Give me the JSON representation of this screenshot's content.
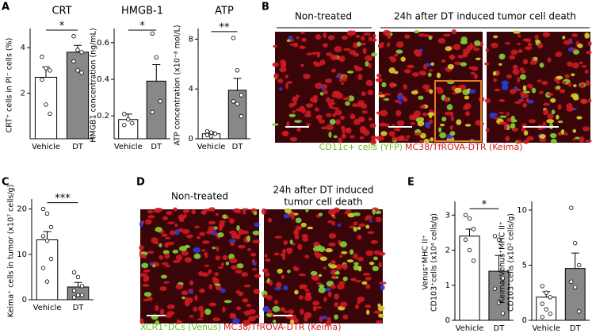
{
  "panels": {
    "A": {
      "letter": "A"
    },
    "B": {
      "letter": "B",
      "untreated_label": "Non-treated",
      "treated_label": "24h after DT induced tumor cell death",
      "caption_green": "CD11c+ cells (YFP)",
      "caption_red": "MC38/TfROVA-DTR (Keima)"
    },
    "C": {
      "letter": "C"
    },
    "D": {
      "letter": "D",
      "untreated_label": "Non-treated",
      "treated_label": [
        "24h after DT induced",
        "tumor cell death"
      ],
      "caption_green": "XCR1⁺DCs (Venus)",
      "caption_red": "MC38/TfROVA-DTR (Keima)"
    },
    "E": {
      "letter": "E"
    }
  },
  "chart_data": [
    {
      "type": "bar",
      "title": "CRT",
      "ylabel": [
        "CRT⁺ cells in PI⁻ cells (%)"
      ],
      "categories": [
        "Vehicle",
        "DT"
      ],
      "values": [
        2.7,
        3.8
      ],
      "errors": [
        0.45,
        0.3
      ],
      "points": [
        [
          3.6,
          3.1,
          3.0,
          2.6,
          1.5,
          1.1
        ],
        [
          4.5,
          3.9,
          3.8,
          3.4,
          3.0,
          2.9
        ]
      ],
      "colors": [
        "#ffffff",
        "#888888"
      ],
      "ylim": [
        0,
        4.7
      ],
      "yticks": [
        2,
        4
      ],
      "annotation": "*"
    },
    {
      "type": "bar",
      "title": "HMGB-1",
      "ylabel": [
        "HMGB1 concentration (ng/mL)"
      ],
      "categories": [
        "Vehicle",
        "DT"
      ],
      "values": [
        0.18,
        0.39
      ],
      "errors": [
        0.03,
        0.09
      ],
      "points": [
        [
          0.21,
          0.18,
          0.16,
          0.15
        ],
        [
          0.65,
          0.52,
          0.28,
          0.22
        ]
      ],
      "colors": [
        "#ffffff",
        "#888888"
      ],
      "ylim": [
        0.075,
        0.66
      ],
      "yticks": [
        0.2,
        0.4,
        0.6
      ],
      "annotation": "*"
    },
    {
      "type": "bar",
      "title": "ATP",
      "ylabel": [
        "ATP concentration (x10⁻⁸ mol/L)"
      ],
      "categories": [
        "Vehicle",
        "DT"
      ],
      "values": [
        0.4,
        3.9
      ],
      "errors": [
        0.15,
        0.95
      ],
      "points": [
        [
          0.6,
          0.5,
          0.4,
          0.3,
          0.2
        ],
        [
          8.1,
          5.5,
          3.5,
          3.0,
          2.8,
          1.8
        ]
      ],
      "colors": [
        "#ffffff",
        "#888888"
      ],
      "ylim": [
        0,
        8.6
      ],
      "yticks": [
        0,
        4,
        8
      ],
      "annotation": "**"
    },
    {
      "type": "bar",
      "ylabel": [
        "Keima⁺ cells in tumor (x10⁷ cells/g)"
      ],
      "categories": [
        "Vehicle",
        "DT"
      ],
      "values": [
        13.2,
        2.8
      ],
      "errors": [
        1.8,
        1.0
      ],
      "points": [
        [
          20,
          19,
          16,
          14,
          13,
          9,
          7,
          4
        ],
        [
          6,
          5,
          3,
          2,
          1,
          1,
          0.5
        ]
      ],
      "colors": [
        "#ffffff",
        "#888888"
      ],
      "ylim": [
        0,
        21.5
      ],
      "yticks": [
        0,
        10,
        20
      ],
      "annotation": "***"
    },
    {
      "type": "bar",
      "ylabel": [
        "Venus⁺MHC II⁺",
        "CD103⁺cells (x10⁴ cells/g)"
      ],
      "categories": [
        "Vehicle",
        "DT"
      ],
      "values": [
        2.4,
        1.4
      ],
      "errors": [
        0.2,
        0.45
      ],
      "points": [
        [
          3.0,
          2.9,
          2.6,
          2.3,
          2.0,
          1.7
        ],
        [
          2.4,
          2.3,
          1.2,
          0.9,
          0.5,
          0.2
        ]
      ],
      "colors": [
        "#ffffff",
        "#888888"
      ],
      "ylim": [
        0,
        3.3
      ],
      "yticks": [
        0,
        1,
        2,
        3
      ],
      "annotation": "*"
    },
    {
      "type": "bar",
      "ylabel": [
        "Keima⁺Venus⁺MHC II⁺",
        "CD103⁺cells (x10² cells/g)"
      ],
      "categories": [
        "Vehicle",
        "DT"
      ],
      "values": [
        2.1,
        4.7
      ],
      "errors": [
        0.5,
        1.4
      ],
      "points": [
        [
          3.1,
          2.5,
          2.1,
          1.5,
          1.0,
          0.6,
          0.3
        ],
        [
          10.2,
          7.0,
          5.0,
          3.5,
          3.0,
          0.8
        ]
      ],
      "colors": [
        "#ffffff",
        "#888888"
      ],
      "ylim": [
        0,
        10.5
      ],
      "yticks": [
        0,
        5,
        10
      ]
    }
  ]
}
